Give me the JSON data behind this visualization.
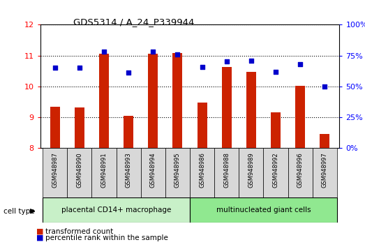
{
  "title": "GDS5314 / A_24_P339944",
  "samples": [
    "GSM948987",
    "GSM948990",
    "GSM948991",
    "GSM948993",
    "GSM948994",
    "GSM948995",
    "GSM948986",
    "GSM948988",
    "GSM948989",
    "GSM948992",
    "GSM948996",
    "GSM948997"
  ],
  "transformed_count": [
    9.35,
    9.32,
    11.05,
    9.05,
    11.05,
    11.08,
    9.47,
    10.62,
    10.48,
    9.17,
    10.02,
    8.47
  ],
  "percentile_rank": [
    65,
    65,
    78,
    61,
    78,
    76,
    66,
    70,
    71,
    62,
    68,
    50
  ],
  "group1_count": 6,
  "group2_count": 6,
  "group1_label": "placental CD14+ macrophage",
  "group2_label": "multinucleated giant cells",
  "cell_type_label": "cell type",
  "ylim_left": [
    8,
    12
  ],
  "ylim_right": [
    0,
    100
  ],
  "yticks_left": [
    8,
    9,
    10,
    11,
    12
  ],
  "yticks_right": [
    0,
    25,
    50,
    75,
    100
  ],
  "bar_color": "#cc2200",
  "dot_color": "#0000cc",
  "group1_bg": "#c8f0c8",
  "group2_bg": "#90e890",
  "tick_label_bg": "#d8d8d8",
  "legend_bar_label": "transformed count",
  "legend_dot_label": "percentile rank within the sample",
  "bar_width": 0.4
}
